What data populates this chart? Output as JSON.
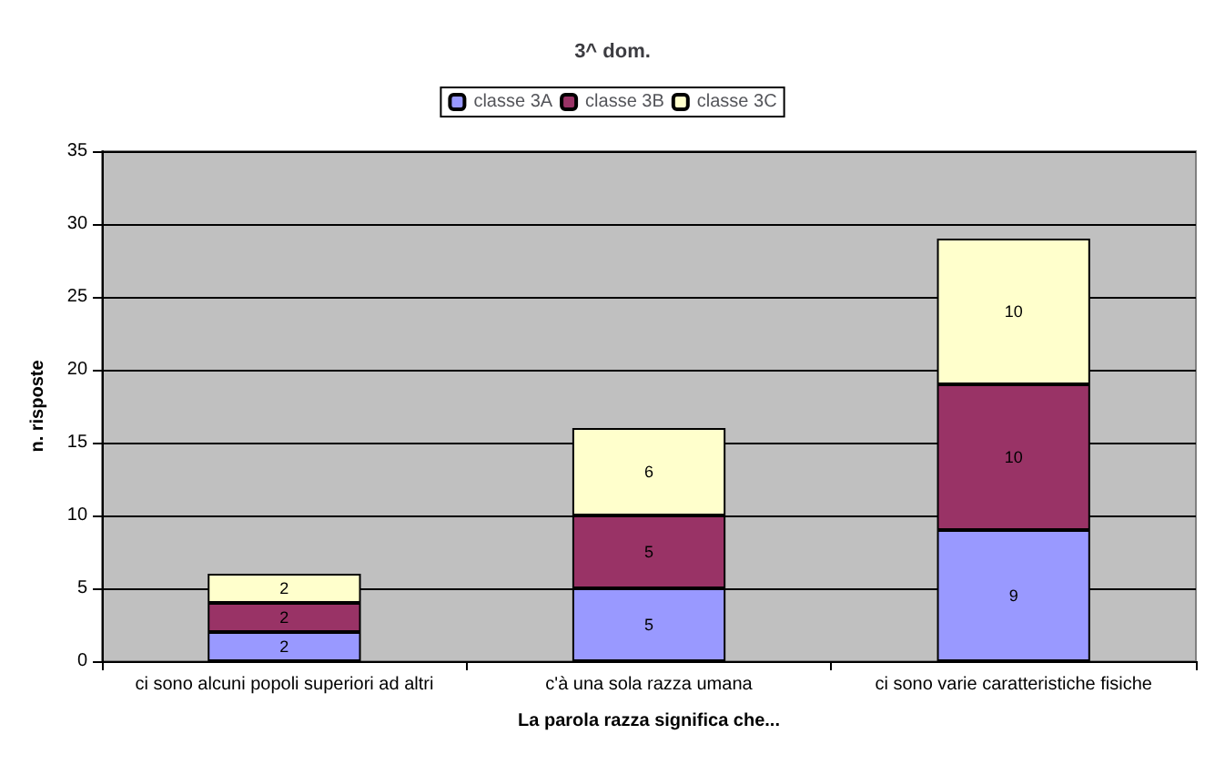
{
  "chart_data": {
    "type": "bar",
    "title": "3^ dom.",
    "xlabel": "La parola razza significa che...",
    "ylabel": "n. risposte",
    "categories": [
      "ci sono alcuni popoli superiori ad altri",
      "c'à una sola razza umana",
      "ci sono varie caratteristiche fisiche"
    ],
    "stacked": true,
    "series": [
      {
        "name": "classe 3A",
        "color": "#9999ff",
        "values": [
          2,
          5,
          9
        ]
      },
      {
        "name": "classe 3B",
        "color": "#993366",
        "values": [
          2,
          5,
          10
        ]
      },
      {
        "name": "classe 3C",
        "color": "#ffffcc",
        "values": [
          2,
          6,
          10
        ]
      }
    ],
    "ylim": [
      0,
      35
    ],
    "yticks": [
      0,
      5,
      10,
      15,
      20,
      25,
      30,
      35
    ],
    "grid": "y",
    "legend": "top",
    "data_labels": true
  }
}
